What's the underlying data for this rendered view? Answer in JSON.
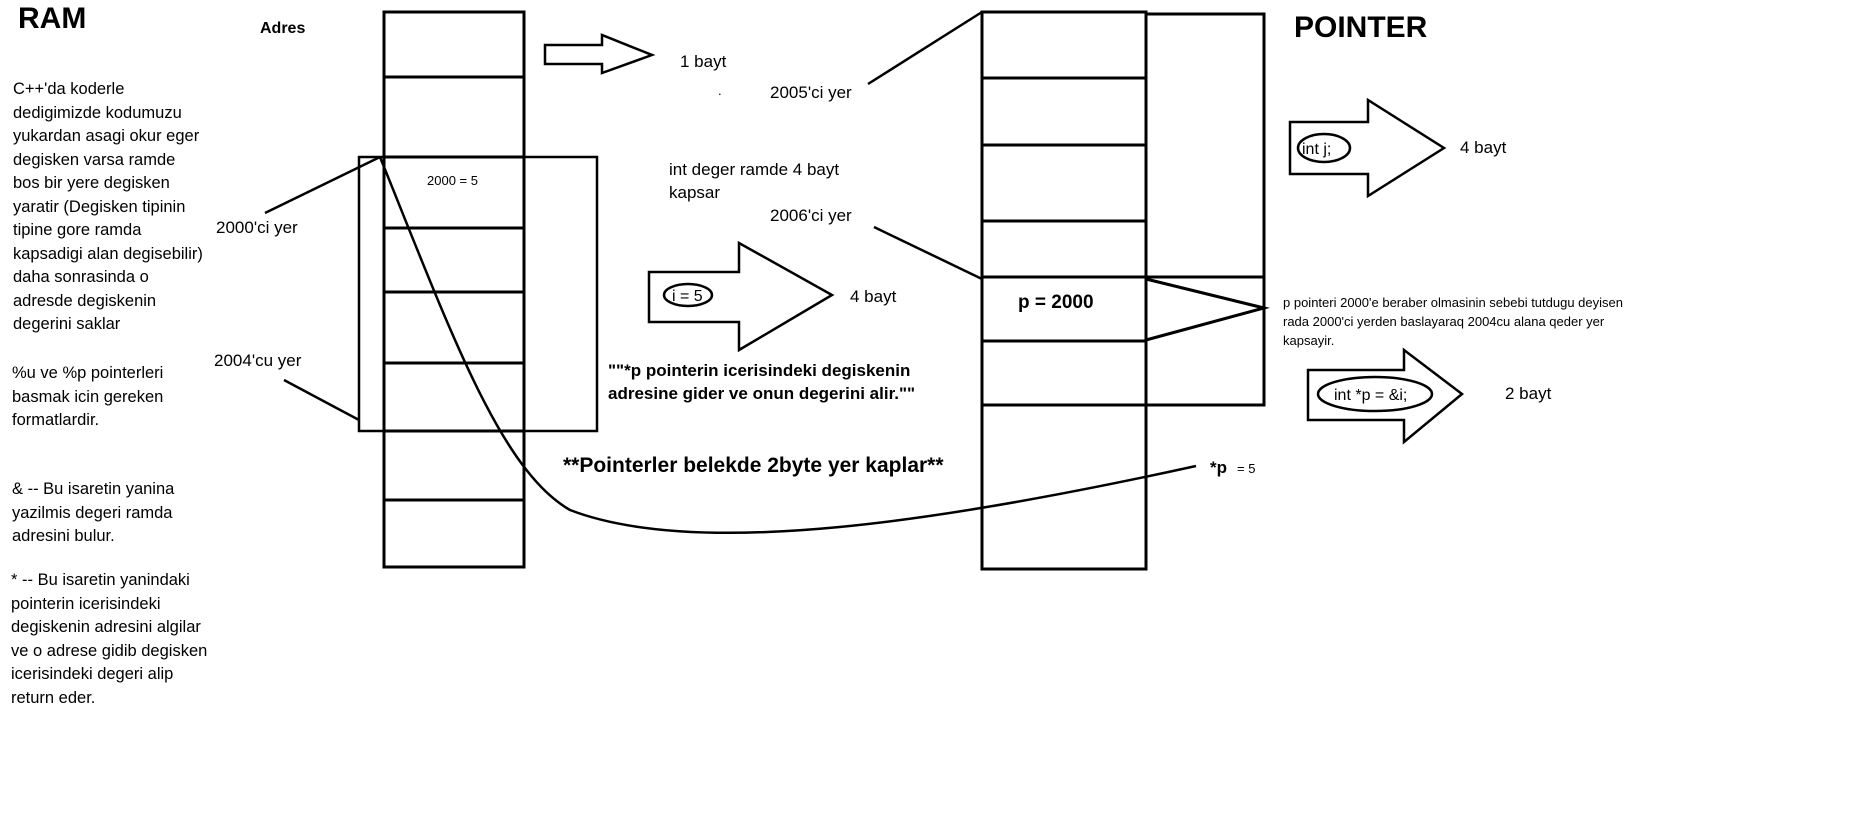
{
  "ram": {
    "title": "RAM",
    "adres_label": "Adres",
    "note1": "C++'da koderle\ndedigimizde kodumuzu\nyukardan asagi okur eger\ndegisken varsa ramde\nbos bir yere degisken\nyaratir (Degisken tipinin\ntipine gore ramda\nkapsadigi alan degisebilir)\ndaha sonrasinda o\nadresde degiskenin\ndegerini saklar",
    "note2": "%u ve %p pointerleri\nbasmak icin gereken\nformatlardir.",
    "note3": "& --  Bu isaretin yanina\nyazilmis degeri ramda\nadresini bulur.",
    "note4": "* -- Bu isaretin yanindaki\npointerin icerisindeki\ndegiskenin adresini algilar\nve o adrese gidib degisken\nicerisindeki degeri alip\nreturn eder.",
    "label_2000": "2000'ci yer",
    "label_2004": "2004'cu yer",
    "cell_value": "2000 = 5",
    "arrow_1bayt": "1 bayt",
    "i_label": "i = 5",
    "i_bytes": "4 bayt",
    "int_note": "int deger ramde 4 bayt\nkapsar",
    "deref_note": "\"\"*p pointerin icerisindeki degiskenin\nadresine gider ve onun degerini alir.\"\"",
    "pointer_size_note": "**Pointerler belekde 2byte yer kaplar**"
  },
  "pointer": {
    "title": "POINTER",
    "label_2005": "2005'ci yer",
    "label_2006": "2006'ci yer",
    "p_cell": "p = 2000",
    "j_label": "int j;",
    "j_bytes": "4 bayt",
    "note": "p pointeri 2000'e beraber olmasinin sebebi tutdugu deyisen\nrada 2000'ci yerden baslayaraq 2004cu alana qeder yer\nkapsayir.",
    "p_decl": "int *p  = &i;",
    "p_bytes": "2 bayt",
    "deref_label": "*p",
    "deref_value": "= 5"
  }
}
